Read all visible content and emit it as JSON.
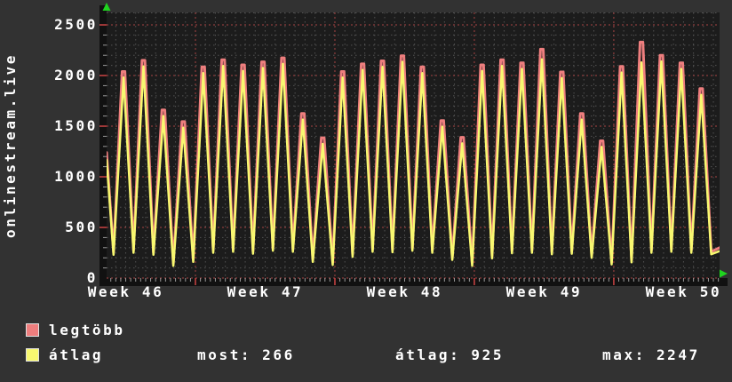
{
  "chart_data": {
    "type": "line",
    "title": "onlinestream.live",
    "x_axis": {
      "labels": [
        "Week 46",
        "Week 47",
        "Week 48",
        "Week 49",
        "Week 50"
      ],
      "label_center_days": [
        0.96,
        7.96,
        14.96,
        21.96,
        28.96
      ],
      "week_boundary_days": [
        4.46,
        11.46,
        18.46,
        25.46
      ],
      "total_days": 30.77,
      "minor_grid_interval_days": 0.5,
      "tick_interval_days": 0.25
    },
    "y_axis": {
      "ticks": [
        0,
        500,
        1000,
        1500,
        2000,
        2500
      ],
      "minor_interval": 100,
      "major_interval": 500,
      "ylim": [
        0,
        2623
      ],
      "grid": "on"
    },
    "legend_position": "bottom",
    "colors": {
      "plot_background": "#1c1c1c",
      "outer_background": "#323232",
      "minor_grid": "#525252",
      "major_grid": "#a84545",
      "axis_strip": "#111111",
      "tick_minor": "#9a9a9a",
      "tick_major": "#cc4444",
      "arrow": "#1fd41f",
      "text": "#ffffff"
    },
    "series": [
      {
        "name": "legtöbb",
        "role": "max",
        "color": "#ee7e7e",
        "points": [
          [
            0,
            1240
          ],
          [
            0.35,
            255
          ],
          [
            0.78,
            2040
          ],
          [
            0.92,
            2040
          ],
          [
            1.35,
            275
          ],
          [
            1.78,
            2150
          ],
          [
            1.92,
            2150
          ],
          [
            2.35,
            255
          ],
          [
            2.78,
            1660
          ],
          [
            2.92,
            1660
          ],
          [
            3.35,
            145
          ],
          [
            3.78,
            1545
          ],
          [
            3.92,
            1545
          ],
          [
            4.35,
            185
          ],
          [
            4.78,
            2085
          ],
          [
            4.92,
            2085
          ],
          [
            5.35,
            275
          ],
          [
            5.78,
            2155
          ],
          [
            5.92,
            2155
          ],
          [
            6.35,
            285
          ],
          [
            6.78,
            2105
          ],
          [
            6.92,
            2105
          ],
          [
            7.35,
            265
          ],
          [
            7.78,
            2135
          ],
          [
            7.92,
            2135
          ],
          [
            8.35,
            295
          ],
          [
            8.78,
            2175
          ],
          [
            8.92,
            2175
          ],
          [
            9.35,
            285
          ],
          [
            9.78,
            1625
          ],
          [
            9.92,
            1625
          ],
          [
            10.35,
            185
          ],
          [
            10.78,
            1385
          ],
          [
            10.92,
            1385
          ],
          [
            11.35,
            155
          ],
          [
            11.78,
            2040
          ],
          [
            11.92,
            2040
          ],
          [
            12.35,
            235
          ],
          [
            12.78,
            2115
          ],
          [
            12.92,
            2115
          ],
          [
            13.35,
            285
          ],
          [
            13.78,
            2145
          ],
          [
            13.92,
            2145
          ],
          [
            14.35,
            280
          ],
          [
            14.78,
            2195
          ],
          [
            14.92,
            2195
          ],
          [
            15.35,
            295
          ],
          [
            15.78,
            2085
          ],
          [
            15.92,
            2085
          ],
          [
            16.35,
            275
          ],
          [
            16.78,
            1555
          ],
          [
            16.92,
            1555
          ],
          [
            17.35,
            205
          ],
          [
            17.78,
            1390
          ],
          [
            17.92,
            1390
          ],
          [
            18.35,
            145
          ],
          [
            18.78,
            2105
          ],
          [
            18.92,
            2105
          ],
          [
            19.35,
            220
          ],
          [
            19.78,
            2155
          ],
          [
            19.92,
            2155
          ],
          [
            20.35,
            270
          ],
          [
            20.78,
            2125
          ],
          [
            20.92,
            2125
          ],
          [
            21.35,
            275
          ],
          [
            21.78,
            2260
          ],
          [
            21.92,
            2260
          ],
          [
            22.35,
            260
          ],
          [
            22.78,
            2035
          ],
          [
            22.92,
            2035
          ],
          [
            23.35,
            265
          ],
          [
            23.78,
            1625
          ],
          [
            23.92,
            1625
          ],
          [
            24.35,
            225
          ],
          [
            24.78,
            1355
          ],
          [
            24.92,
            1355
          ],
          [
            25.35,
            160
          ],
          [
            25.78,
            2090
          ],
          [
            25.92,
            2090
          ],
          [
            26.35,
            180
          ],
          [
            26.78,
            2330
          ],
          [
            26.92,
            2330
          ],
          [
            27.35,
            275
          ],
          [
            27.78,
            2200
          ],
          [
            27.92,
            2200
          ],
          [
            28.35,
            285
          ],
          [
            28.78,
            2125
          ],
          [
            28.92,
            2125
          ],
          [
            29.35,
            275
          ],
          [
            29.78,
            1870
          ],
          [
            29.92,
            1870
          ],
          [
            30.35,
            260
          ],
          [
            30.77,
            300
          ]
        ]
      },
      {
        "name": "átlag",
        "role": "average",
        "color": "#f8f870",
        "points": [
          [
            0,
            1165
          ],
          [
            0.35,
            230
          ],
          [
            0.85,
            1980
          ],
          [
            1.35,
            250
          ],
          [
            1.85,
            2090
          ],
          [
            2.35,
            230
          ],
          [
            2.85,
            1600
          ],
          [
            3.35,
            120
          ],
          [
            3.85,
            1485
          ],
          [
            4.35,
            160
          ],
          [
            4.85,
            2025
          ],
          [
            5.35,
            250
          ],
          [
            5.85,
            2095
          ],
          [
            6.35,
            260
          ],
          [
            6.85,
            2045
          ],
          [
            7.35,
            240
          ],
          [
            7.85,
            2075
          ],
          [
            8.35,
            270
          ],
          [
            8.85,
            2115
          ],
          [
            9.35,
            260
          ],
          [
            9.85,
            1565
          ],
          [
            10.35,
            160
          ],
          [
            10.85,
            1325
          ],
          [
            11.35,
            130
          ],
          [
            11.85,
            1980
          ],
          [
            12.35,
            210
          ],
          [
            12.85,
            2055
          ],
          [
            13.35,
            260
          ],
          [
            13.85,
            2085
          ],
          [
            14.35,
            255
          ],
          [
            14.85,
            2135
          ],
          [
            15.35,
            270
          ],
          [
            15.85,
            2025
          ],
          [
            16.35,
            250
          ],
          [
            16.85,
            1495
          ],
          [
            17.35,
            180
          ],
          [
            17.85,
            1330
          ],
          [
            18.35,
            120
          ],
          [
            18.85,
            2045
          ],
          [
            19.35,
            195
          ],
          [
            19.85,
            2095
          ],
          [
            20.35,
            245
          ],
          [
            20.85,
            2065
          ],
          [
            21.35,
            250
          ],
          [
            21.85,
            2160
          ],
          [
            22.35,
            235
          ],
          [
            22.85,
            1975
          ],
          [
            23.35,
            240
          ],
          [
            23.85,
            1565
          ],
          [
            24.35,
            200
          ],
          [
            24.85,
            1295
          ],
          [
            25.35,
            135
          ],
          [
            25.85,
            2030
          ],
          [
            26.35,
            155
          ],
          [
            26.85,
            2130
          ],
          [
            27.35,
            250
          ],
          [
            27.85,
            2140
          ],
          [
            28.35,
            260
          ],
          [
            28.85,
            2065
          ],
          [
            29.35,
            250
          ],
          [
            29.85,
            1810
          ],
          [
            30.35,
            235
          ],
          [
            30.77,
            266
          ]
        ]
      }
    ]
  },
  "legend": {
    "items": [
      {
        "label": "legtöbb",
        "color": "#ee7e7e"
      },
      {
        "label": "átlag",
        "color": "#f8f870"
      }
    ],
    "stats": [
      {
        "label": "most:",
        "value": "266"
      },
      {
        "label": "átlag:",
        "value": "925"
      },
      {
        "label": "max:",
        "value": "2247"
      }
    ]
  }
}
